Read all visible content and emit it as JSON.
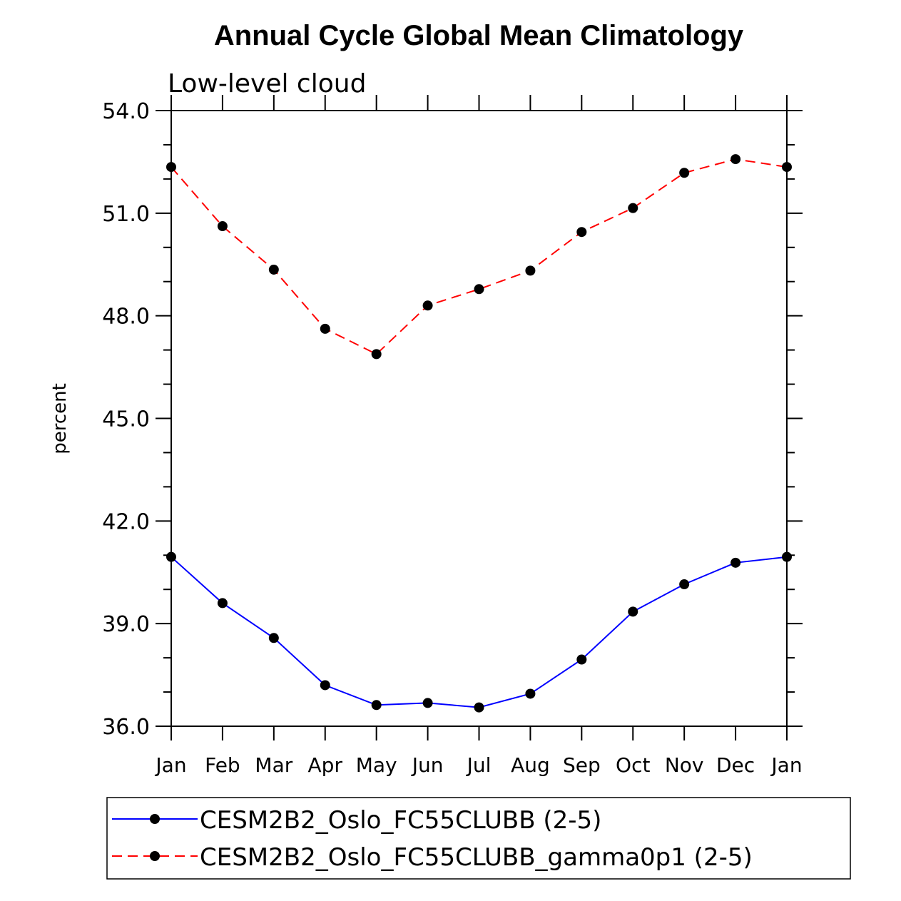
{
  "chart_data": {
    "type": "line",
    "title": "Annual Cycle Global Mean Climatology",
    "subtitle": "Low-level cloud",
    "xlabel": "",
    "ylabel": "percent",
    "categories": [
      "Jan",
      "Feb",
      "Mar",
      "Apr",
      "May",
      "Jun",
      "Jul",
      "Aug",
      "Sep",
      "Oct",
      "Nov",
      "Dec",
      "Jan"
    ],
    "ylim": [
      36.0,
      54.0
    ],
    "yticks": [
      "36.0",
      "39.0",
      "42.0",
      "45.0",
      "48.0",
      "51.0",
      "54.0"
    ],
    "series": [
      {
        "name": "CESM2B2_Oslo_FC55CLUBB (2-5)",
        "color": "#0000ff",
        "dash": "solid",
        "values": [
          40.95,
          39.6,
          38.58,
          37.2,
          36.62,
          36.68,
          36.55,
          36.95,
          37.95,
          39.35,
          40.15,
          40.78,
          40.95
        ]
      },
      {
        "name": "CESM2B2_Oslo_FC55CLUBB_gamma0p1 (2-5)",
        "color": "#ff0000",
        "dash": "dashed",
        "values": [
          52.35,
          50.62,
          49.35,
          47.62,
          46.88,
          48.3,
          48.78,
          49.32,
          50.45,
          51.15,
          52.18,
          52.58,
          52.35
        ]
      }
    ],
    "legend_position": "bottom"
  }
}
